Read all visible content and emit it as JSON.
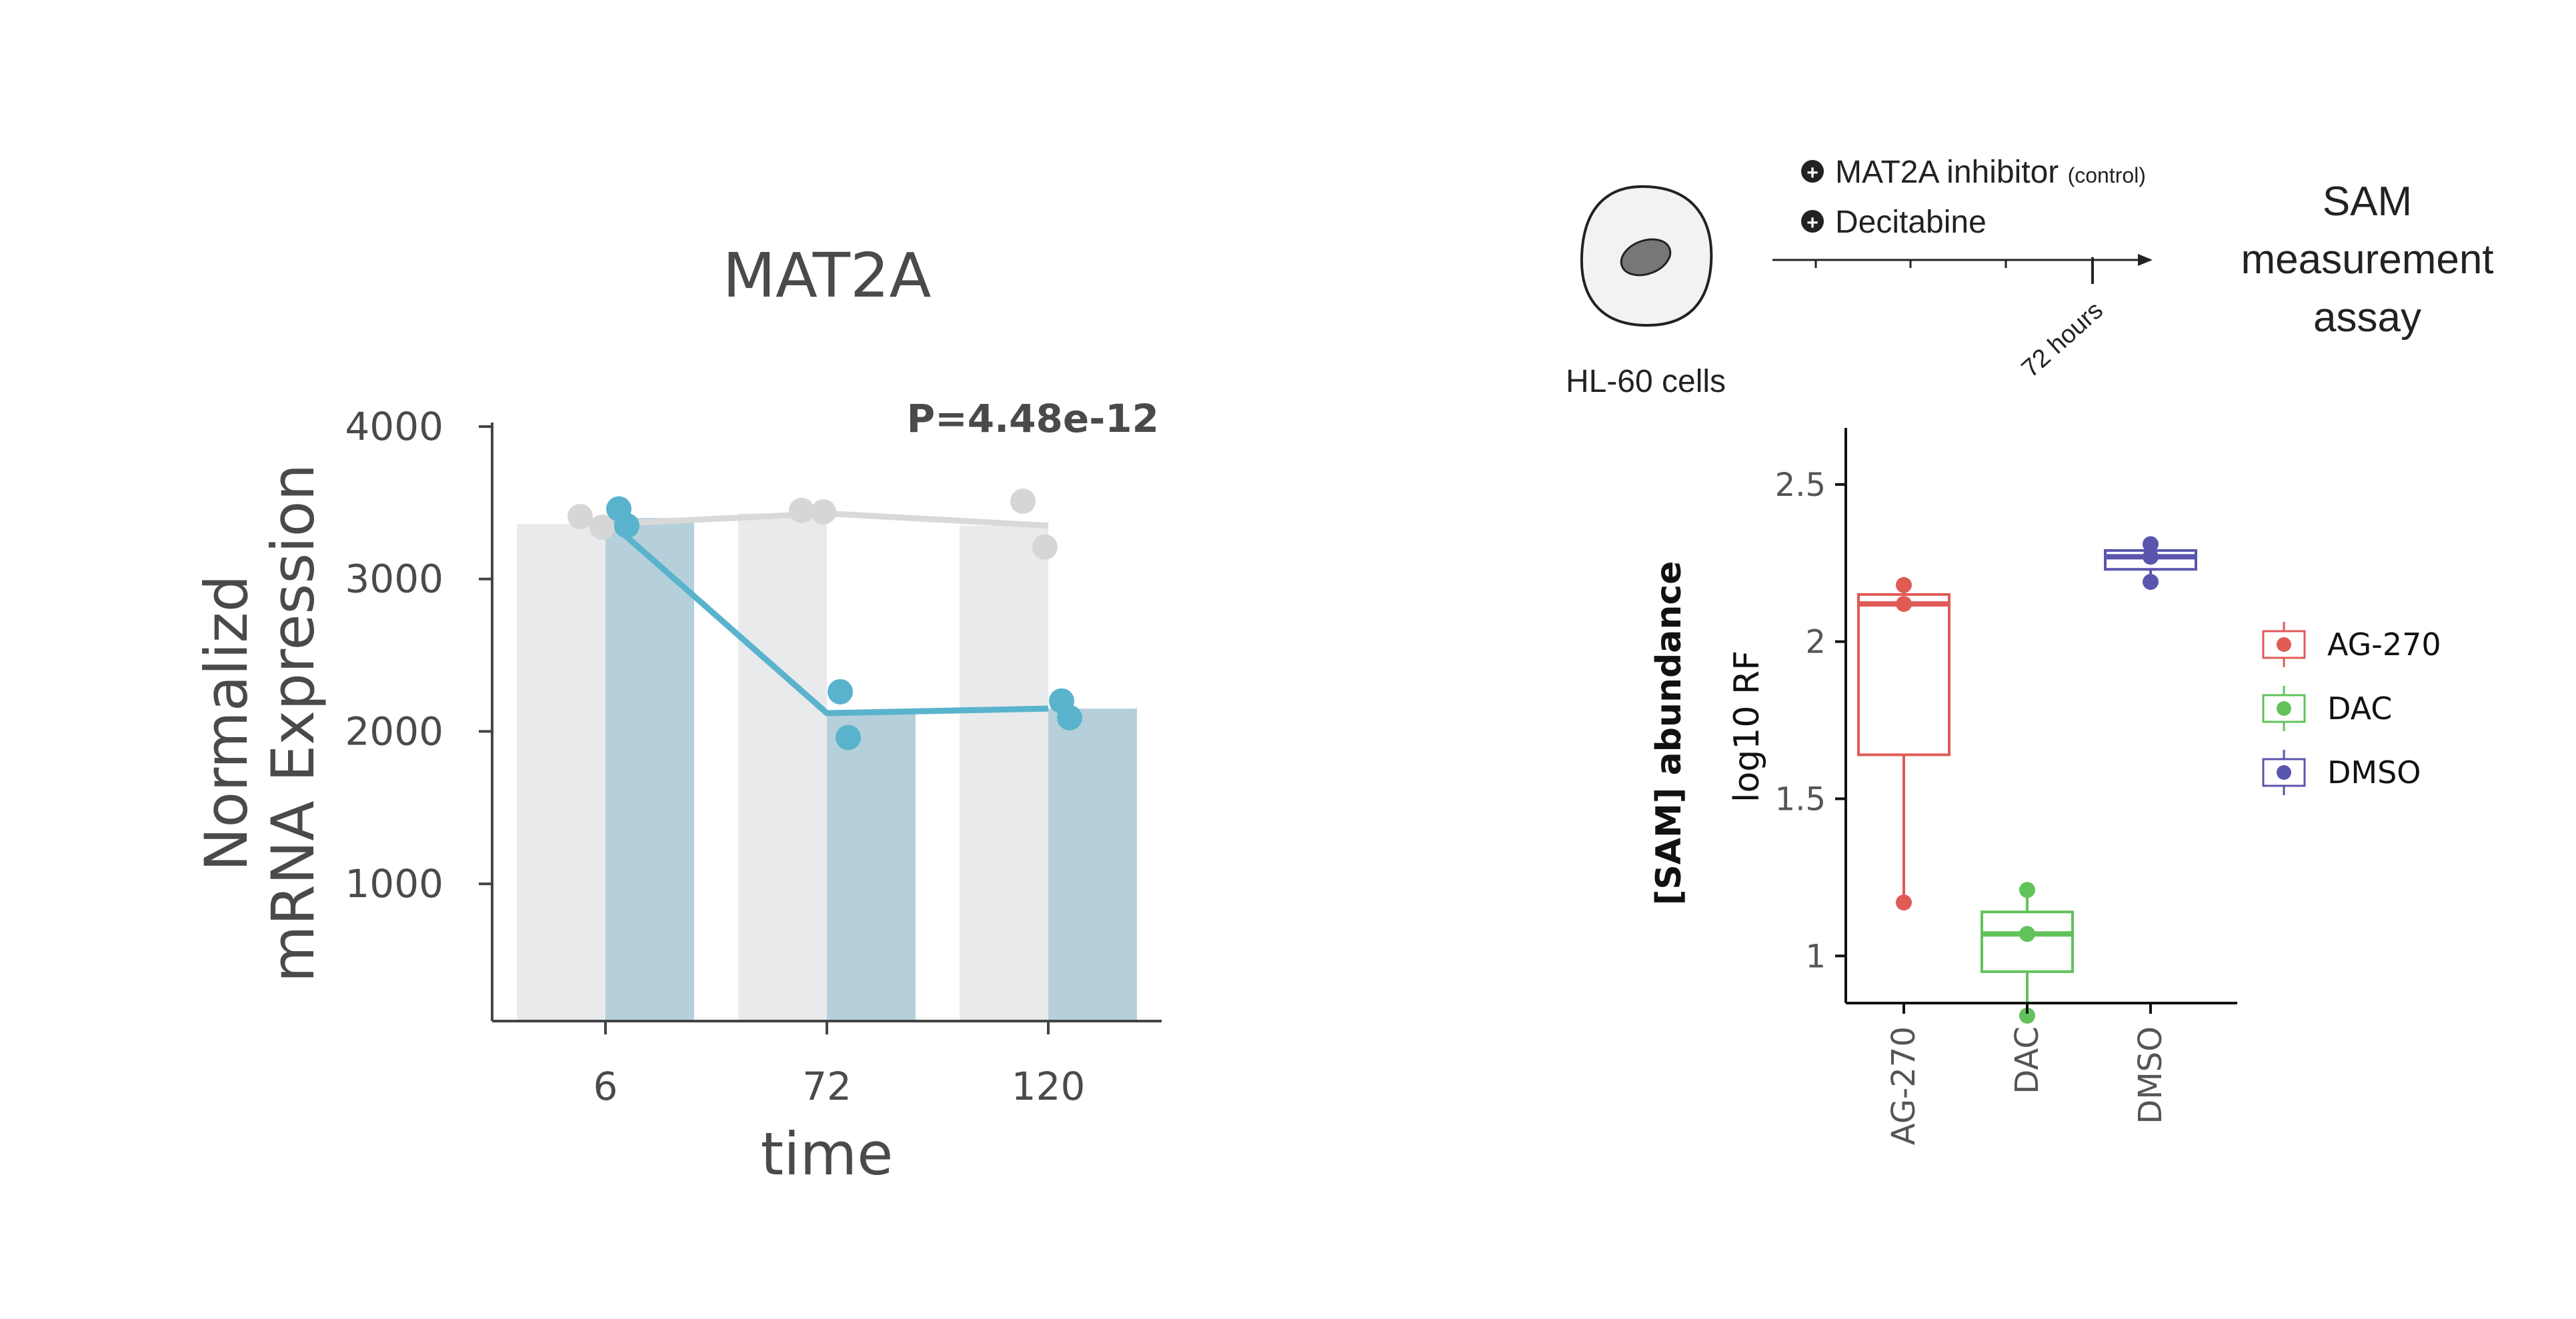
{
  "chart_data": [
    {
      "type": "bar",
      "title": "MAT2A",
      "annotation": "P=4.48e-12",
      "xlabel": "time",
      "ylabel_lines": [
        "Normalizd",
        "mRNA Expression"
      ],
      "categories": [
        "6",
        "72",
        "120"
      ],
      "yticks": [
        "1000",
        "2000",
        "3000",
        "4000"
      ],
      "ylim": [
        100,
        4000
      ],
      "series": [
        {
          "color": "#e9eaec",
          "point_color": "#d6d6d6",
          "line_color": "#d9d9d9",
          "values": [
            3360,
            3430,
            3350
          ],
          "points": [
            [
              3410,
              3340
            ],
            [
              3450,
              3440
            ],
            [
              3510,
              3210
            ]
          ]
        },
        {
          "color": "#b5d0da",
          "point_color": "#5ab3cc",
          "line_color": "#5ab3cc",
          "values": [
            3400,
            2120,
            2150
          ],
          "points": [
            [
              3460,
              3350
            ],
            [
              2260,
              1960
            ],
            [
              2200,
              2090
            ]
          ]
        }
      ]
    },
    {
      "type": "box",
      "ylabel_bold": "[SAM] abundance",
      "ylabel": "log10 RF",
      "categories": [
        "AG-270",
        "DAC",
        "DMSO"
      ],
      "yticks": [
        "1",
        "1.5",
        "2",
        "2.5"
      ],
      "ylim": [
        0.85,
        2.68
      ],
      "boxes": [
        {
          "name": "AG-270",
          "color": "#e05a56",
          "q1": 1.64,
          "median": 2.12,
          "q3": 2.15,
          "min": 1.17,
          "max": 2.18,
          "points": [
            2.18,
            2.12,
            1.17
          ]
        },
        {
          "name": "DAC",
          "color": "#62c25a",
          "q1": 0.95,
          "median": 1.07,
          "q3": 1.14,
          "min": 0.81,
          "max": 1.22,
          "points": [
            1.21,
            1.07,
            0.81
          ]
        },
        {
          "name": "DMSO",
          "color": "#5a55ad",
          "q1": 2.23,
          "median": 2.27,
          "q3": 2.29,
          "min": 2.19,
          "max": 2.31,
          "points": [
            2.31,
            2.27,
            2.19
          ]
        }
      ],
      "legend_position": "right"
    }
  ],
  "diagram": {
    "cell_label": "HL-60 cells",
    "treatments": [
      {
        "label": "MAT2A inhibitor",
        "note": "(control)"
      },
      {
        "label": "Decitabine",
        "note": ""
      }
    ],
    "time_label": "72 hours",
    "assay_lines": [
      "SAM",
      "measurement",
      "assay"
    ]
  }
}
